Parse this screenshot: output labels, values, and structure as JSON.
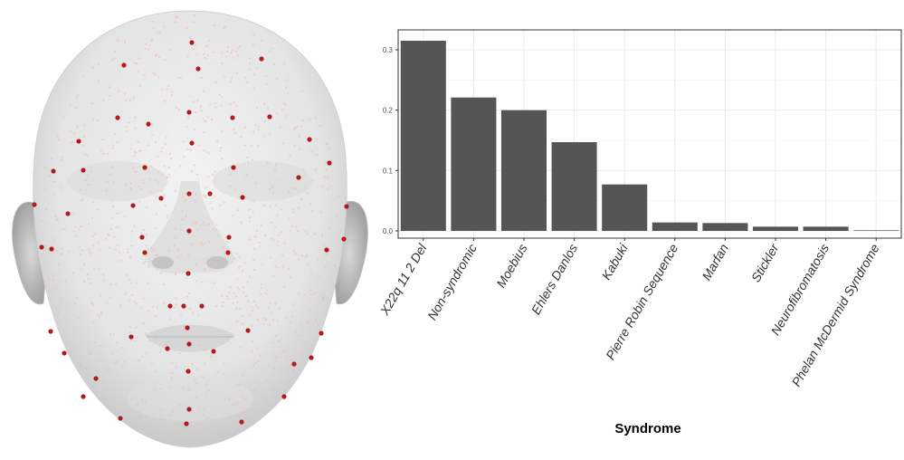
{
  "colors": {
    "bar": "#555555",
    "landmark": "#b31b1b",
    "mesh_point": "#f0b8b8",
    "face_fill": "#e8e8e8",
    "grid": "#ebebeb"
  },
  "face_image": {
    "icon": "face-mesh-render"
  },
  "chart_data": {
    "type": "bar",
    "categories": [
      "X22q 11 2 Del",
      "Non-syndromic",
      "Moebius",
      "Ehlers Danlos",
      "Kabuki",
      "Pierre Robin Sequence",
      "Marfan",
      "Stickler",
      "Neurofibromatosis",
      "Phelan McDermid Syndrome"
    ],
    "values": [
      0.315,
      0.221,
      0.2,
      0.147,
      0.077,
      0.014,
      0.013,
      0.007,
      0.007,
      0.001
    ],
    "yticks": [
      "0.0",
      "0.1",
      "0.2",
      "0.3"
    ],
    "ylim": [
      -0.012,
      0.333
    ],
    "xlabel": "Syndrome",
    "ylabel": "",
    "grid": true,
    "legend": "none"
  }
}
